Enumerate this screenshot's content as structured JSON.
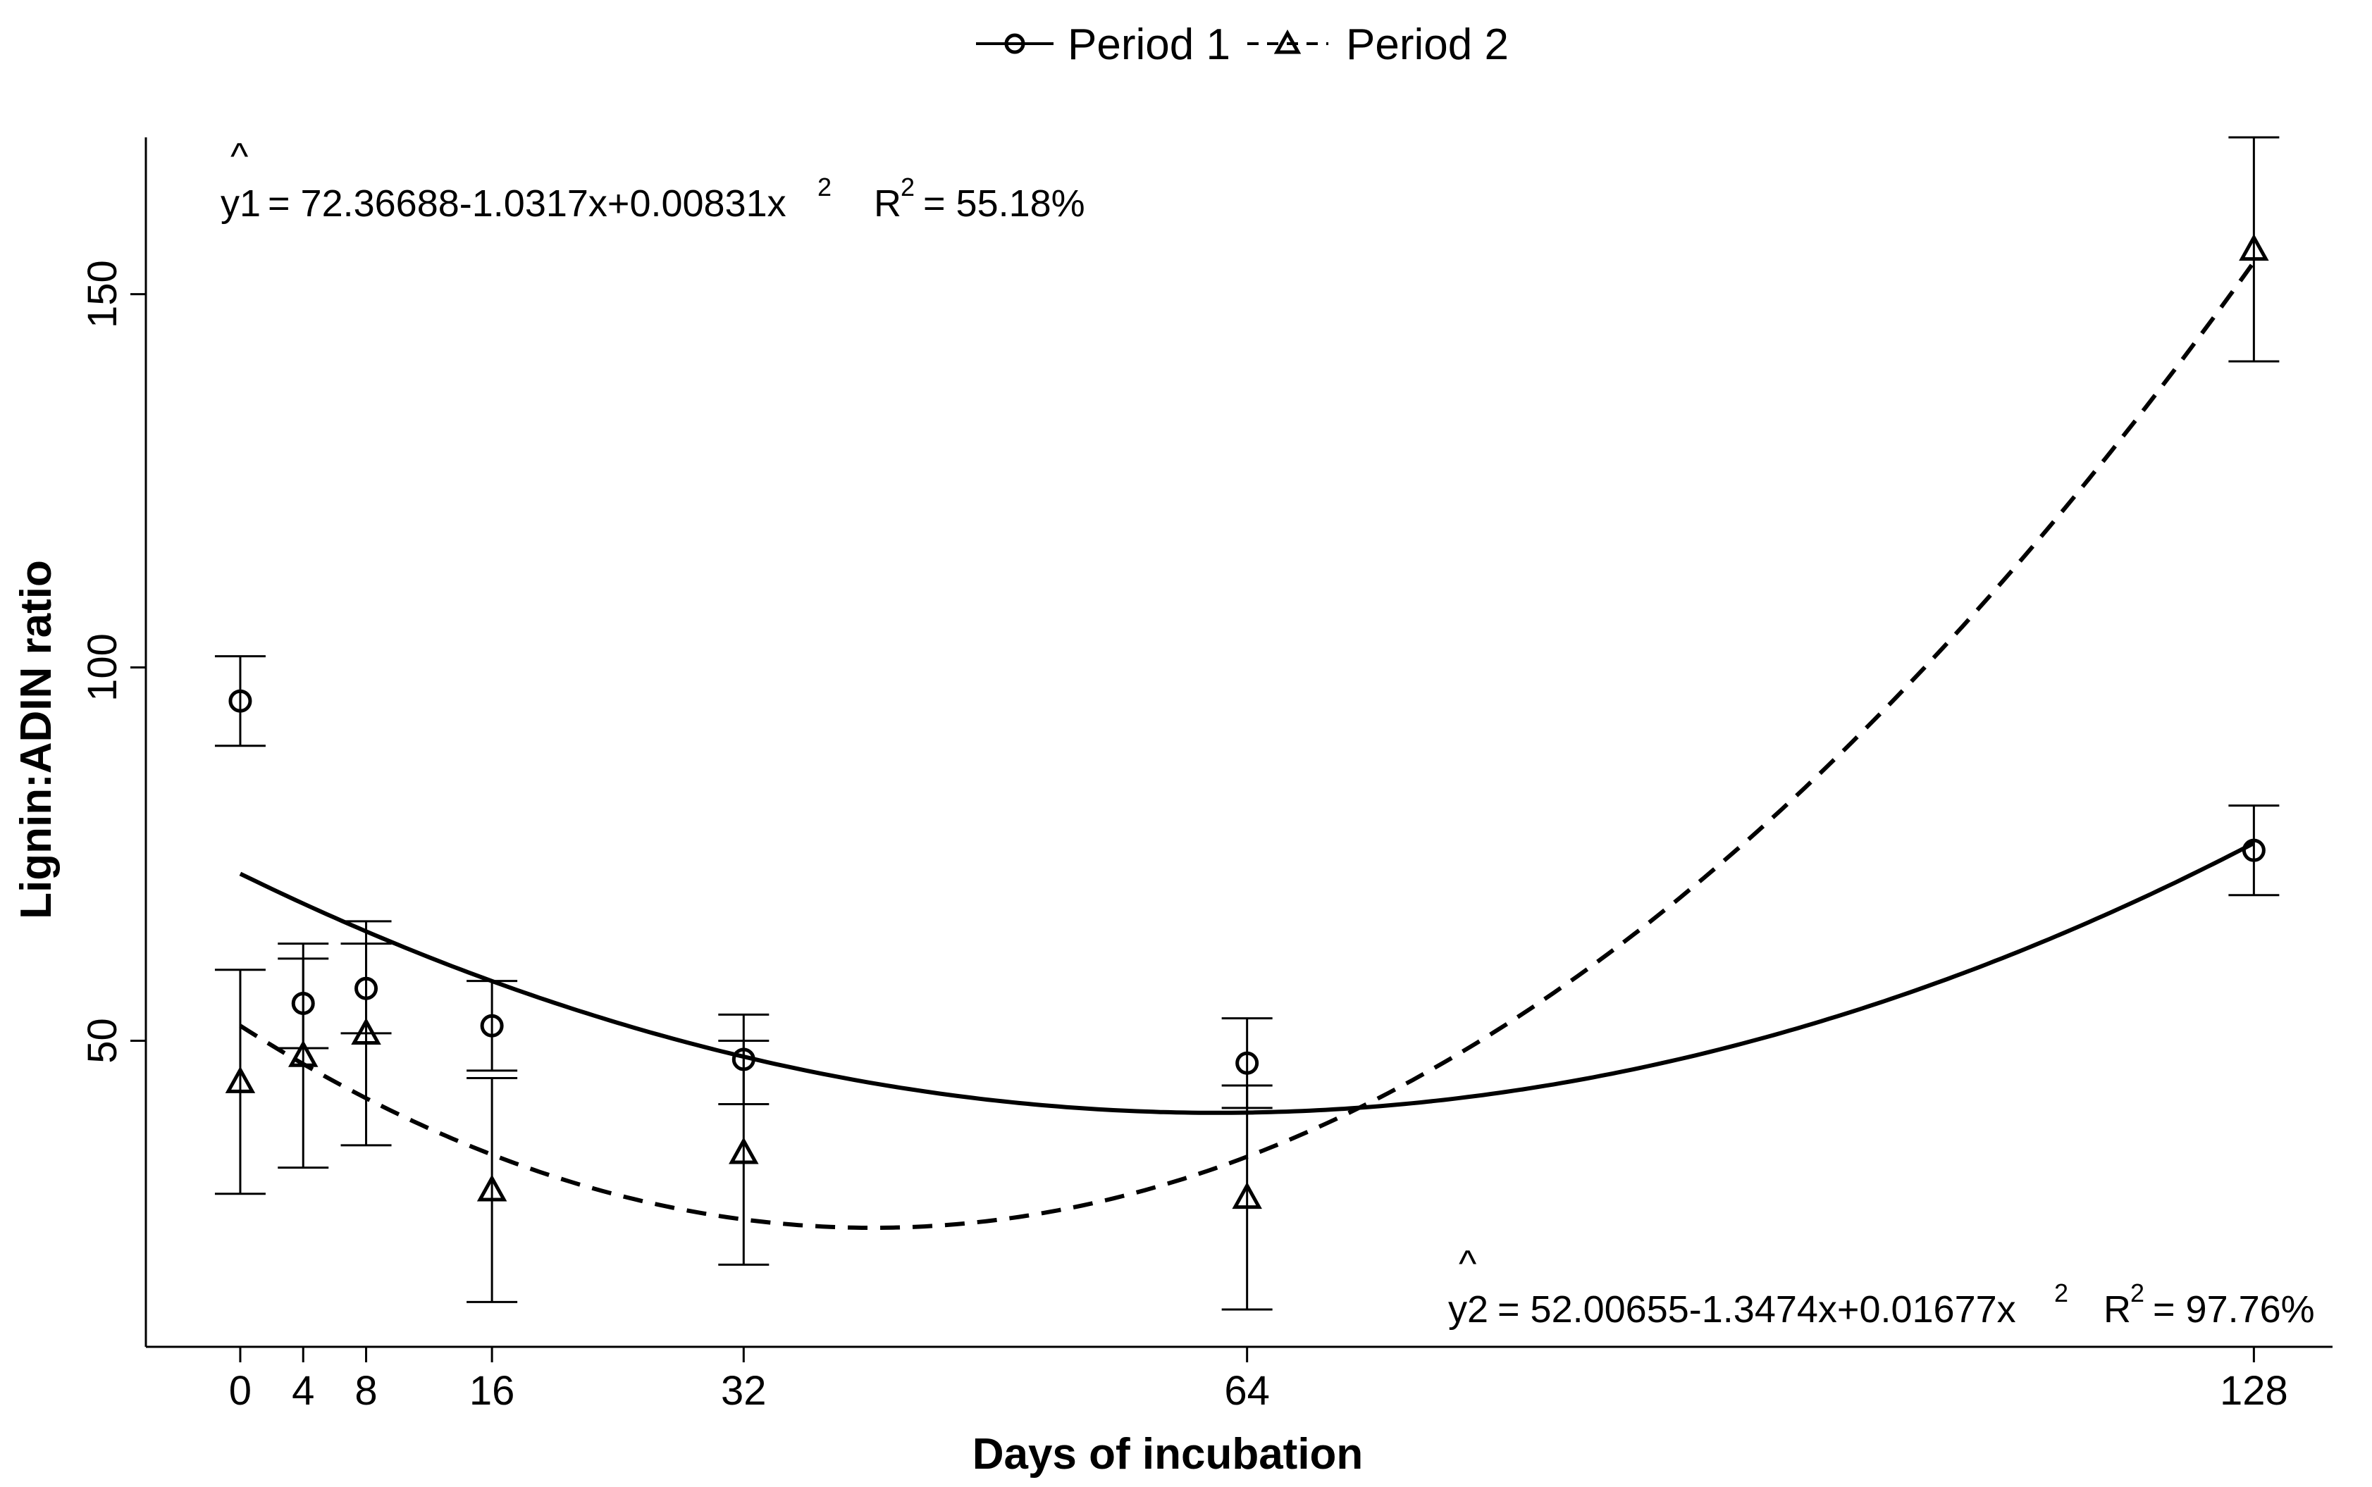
{
  "chart_data": {
    "type": "line",
    "xlabel": "Days of incubation",
    "ylabel": "Lignin:ADIN ratio",
    "xlim": [
      -6,
      133
    ],
    "ylim": [
      9,
      171
    ],
    "x_ticks": [
      0,
      4,
      8,
      16,
      32,
      64,
      128
    ],
    "y_ticks": [
      50,
      100,
      150
    ],
    "legend": {
      "placement": "top-center",
      "entries": [
        {
          "name": "Period 1",
          "marker": "circle",
          "line": "solid"
        },
        {
          "name": "Period 2",
          "marker": "triangle",
          "line": "dashed"
        }
      ]
    },
    "series": [
      {
        "name": "Period 1",
        "marker": "circle",
        "line_style": "solid",
        "x": [
          0,
          4,
          8,
          16,
          32,
          64,
          128
        ],
        "y": [
          95.5,
          55,
          57,
          52,
          47.5,
          47,
          75.5
        ],
        "err_low": [
          89.5,
          49,
          51,
          46,
          41.5,
          41,
          69.5
        ],
        "err_high": [
          101.5,
          61,
          63,
          58,
          53.5,
          53,
          81.5
        ],
        "fit": {
          "coefficients": [
            72.36688,
            -1.0317,
            0.00831
          ],
          "label_yhat": "y1",
          "label_eq": "= 72.36688-1.0317x+0.00831x",
          "label_r2": "R",
          "label_r2_value": "= 55.18%",
          "label_sup": "2",
          "label_hat": "^"
        }
      },
      {
        "name": "Period 2",
        "marker": "triangle",
        "line_style": "dashed",
        "x": [
          0,
          4,
          8,
          16,
          32,
          64,
          128
        ],
        "y": [
          44.5,
          48,
          51,
          30,
          35,
          29,
          156
        ],
        "err_low": [
          29.5,
          33,
          36,
          15,
          20,
          14,
          141
        ],
        "err_high": [
          59.5,
          63,
          66,
          45,
          50,
          44,
          171
        ],
        "fit": {
          "coefficients": [
            52.00655,
            -1.3474,
            0.01677
          ],
          "label_yhat": "y2",
          "label_eq": "= 52.00655-1.3474x+0.01677x",
          "label_r2": "R",
          "label_r2_value": "= 97.76%",
          "label_sup": "2",
          "label_hat": "^"
        }
      }
    ]
  }
}
